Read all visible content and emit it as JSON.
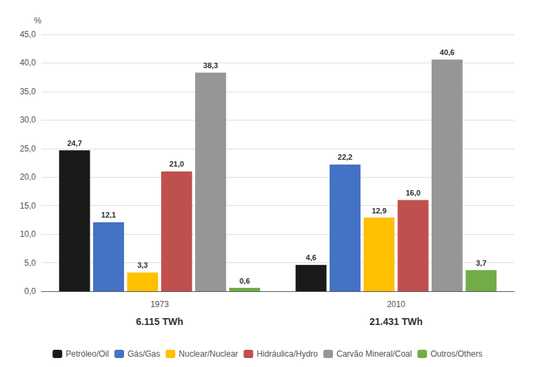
{
  "chart_data": {
    "type": "bar",
    "categories": [
      "1973",
      "2010"
    ],
    "annotations": [
      {
        "category": "1973",
        "text": "6.115 TWh"
      },
      {
        "category": "2010",
        "text": "21.431 TWh"
      }
    ],
    "y_label": "%",
    "series": [
      {
        "name": "Petróleo/Oil",
        "color": "#1a1a1a",
        "values": [
          24.7,
          4.6
        ],
        "value_labels": [
          "24,7",
          "4,6"
        ]
      },
      {
        "name": "Gás/Gas",
        "color": "#4472C4",
        "values": [
          12.1,
          22.2
        ],
        "value_labels": [
          "12,1",
          "22,2"
        ]
      },
      {
        "name": "Nuclear/Nuclear",
        "color": "#FFC000",
        "values": [
          3.3,
          12.9
        ],
        "value_labels": [
          "3,3",
          "12,9"
        ]
      },
      {
        "name": "Hidráulica/Hydro",
        "color": "#C0504D",
        "values": [
          21.0,
          16.0
        ],
        "value_labels": [
          "21,0",
          "16,0"
        ]
      },
      {
        "name": "Carvão Mineral/Coal",
        "color": "#969696",
        "values": [
          38.3,
          40.6
        ],
        "value_labels": [
          "38,3",
          "40,6"
        ]
      },
      {
        "name": "Outros/Others",
        "color": "#70AD47",
        "values": [
          0.6,
          3.7
        ],
        "value_labels": [
          "0,6",
          "3,7"
        ]
      }
    ],
    "ylim": [
      0,
      45
    ],
    "yticks": [
      {
        "value": 0,
        "label": "0,0"
      },
      {
        "value": 5,
        "label": "5,0"
      },
      {
        "value": 10,
        "label": "10,0"
      },
      {
        "value": 15,
        "label": "15,0"
      },
      {
        "value": 20,
        "label": "20,0"
      },
      {
        "value": 25,
        "label": "25,0"
      },
      {
        "value": 30,
        "label": "30,0"
      },
      {
        "value": 35,
        "label": "35,0"
      },
      {
        "value": 40,
        "label": "40,0"
      },
      {
        "value": 45,
        "label": "45,0"
      }
    ],
    "grid": true,
    "legend": "bottom",
    "data_labels": true
  }
}
